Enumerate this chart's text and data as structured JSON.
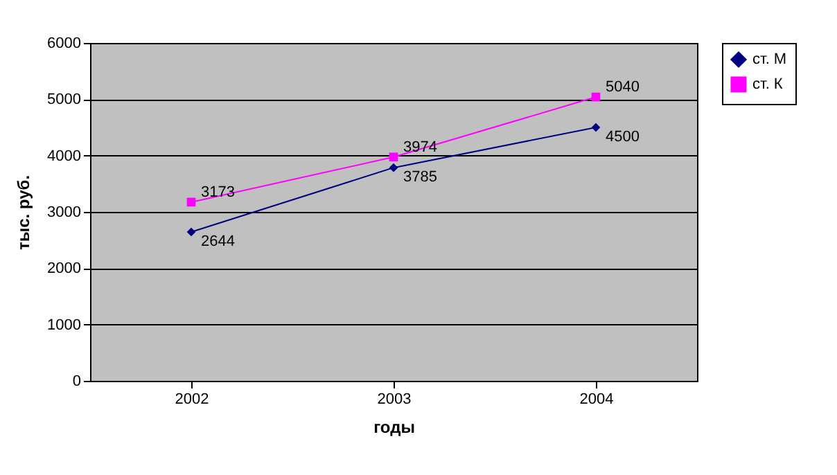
{
  "chart_data": {
    "type": "line",
    "xlabel": "годы",
    "ylabel": "тыс. руб.",
    "categories": [
      "2002",
      "2003",
      "2004"
    ],
    "series": [
      {
        "name": "ст. М",
        "color": "#000080",
        "marker": "diamond",
        "values": [
          2644,
          3785,
          4500
        ]
      },
      {
        "name": "ст. К",
        "color": "#ff00ff",
        "marker": "square",
        "values": [
          3173,
          3974,
          5040
        ]
      }
    ],
    "ylim": [
      0,
      6000
    ],
    "yticks": [
      0,
      1000,
      2000,
      3000,
      4000,
      5000,
      6000
    ],
    "grid": "y",
    "legend": "right",
    "data_labels": true,
    "line_style": "solid"
  }
}
